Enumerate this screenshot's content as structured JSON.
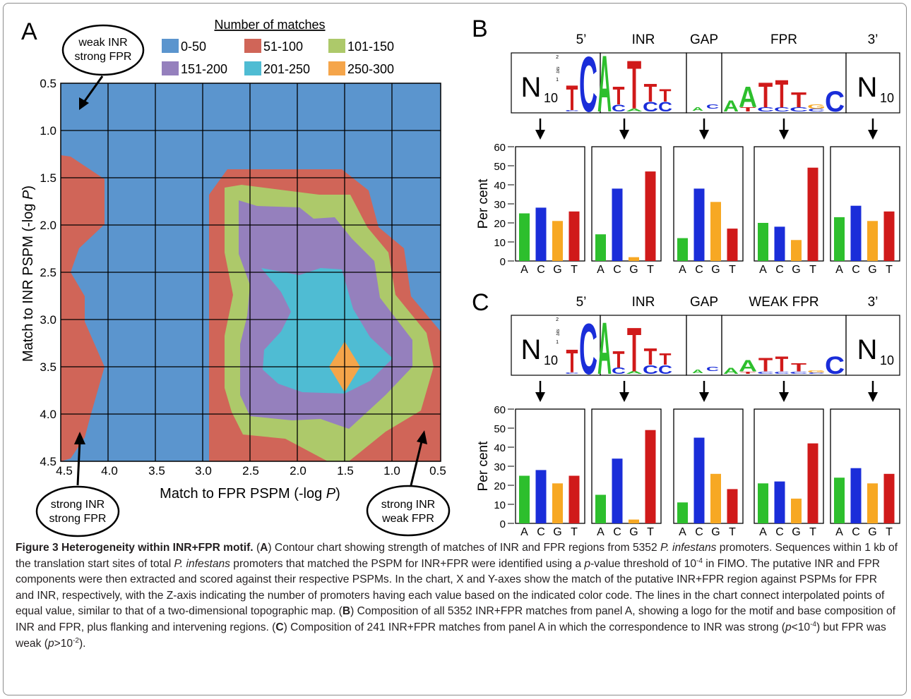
{
  "colors": {
    "c0_50": "#5b95ce",
    "c51_100": "#d06558",
    "c101_150": "#adc96a",
    "c151_200": "#9580bd",
    "c201_250": "#4fbcd3",
    "c250_300": "#f5a54a",
    "A": "#2dbf2d",
    "C": "#1a2dd9",
    "G": "#f7a823",
    "T": "#d01a1a"
  },
  "panelA": {
    "letter": "A",
    "legend_title": "Number of matches",
    "legend": [
      {
        "label": "0-50",
        "color": "#5b95ce"
      },
      {
        "label": "51-100",
        "color": "#d06558"
      },
      {
        "label": "101-150",
        "color": "#adc96a"
      },
      {
        "label": "151-200",
        "color": "#9580bd"
      },
      {
        "label": "201-250",
        "color": "#4fbcd3"
      },
      {
        "label": "250-300",
        "color": "#f5a54a"
      }
    ],
    "xlabel_pre": "Match to FPR PSPM (-log ",
    "xlabel_var": "P",
    "ylabel_pre": "Match to INR  PSPM (-log ",
    "ylabel_var": "P",
    "close_paren": ")",
    "xticks": [
      "4.5",
      "4.0",
      "3.5",
      "3.0",
      "2.5",
      "2.0",
      "1.5",
      "1.0",
      "0.5"
    ],
    "yticks": [
      "0.5",
      "1.0",
      "1.5",
      "2.0",
      "2.5",
      "3.0",
      "3.5",
      "4.0",
      "4.5"
    ],
    "callout_top_l1": "weak INR",
    "callout_top_l2": "strong FPR",
    "callout_bl_l1": "strong INR",
    "callout_bl_l2": "strong FPR",
    "callout_br_l1": "strong INR",
    "callout_br_l2": "weak FPR"
  },
  "panelB": {
    "letter": "B",
    "regions": [
      "5’",
      "INR",
      "GAP",
      "FPR",
      "3’"
    ],
    "n_label": "N",
    "n_sub": "10",
    "bits_label": "bits",
    "bits_ticks": [
      "2",
      "1"
    ],
    "ylabel": "Per cent",
    "yticks": [
      "60",
      "50",
      "40",
      "30",
      "20",
      "10",
      "0"
    ],
    "bases": [
      "A",
      "C",
      "G",
      "T"
    ],
    "bars": [
      [
        25,
        28,
        21,
        26
      ],
      [
        14,
        38,
        2,
        47
      ],
      [
        12,
        38,
        31,
        17
      ],
      [
        20,
        18,
        11,
        49
      ],
      [
        23,
        29,
        21,
        26
      ]
    ]
  },
  "panelC": {
    "letter": "C",
    "regions": [
      "5’",
      "INR",
      "GAP",
      "WEAK FPR",
      "3’"
    ],
    "n_label": "N",
    "n_sub": "10",
    "bits_label": "bits",
    "bits_ticks": [
      "2",
      "1"
    ],
    "ylabel": "Per cent",
    "yticks": [
      "60",
      "50",
      "40",
      "30",
      "20",
      "10",
      "0"
    ],
    "bases": [
      "A",
      "C",
      "G",
      "T"
    ],
    "bars": [
      [
        25,
        28,
        21,
        25
      ],
      [
        15,
        34,
        2,
        49
      ],
      [
        11,
        45,
        26,
        18
      ],
      [
        21,
        22,
        13,
        42
      ],
      [
        24,
        29,
        21,
        26
      ]
    ]
  },
  "caption": {
    "title": "Figure 3 Heterogeneity within INR+FPR motif.",
    "s01": " (",
    "s02": "A",
    "s03": ") Contour chart showing strength of matches of INR and FPR regions from 5352 ",
    "s04": "P. infestans",
    "s05": " promoters. Sequences within 1 kb of the translation start sites of total ",
    "s06": "P. infestans",
    "s07": " promoters that matched the PSPM for INR+FPR were identified using a ",
    "s08": "p",
    "s09": "-value threshold of 10",
    "s10": "-4",
    "s11": " in FIMO. The putative INR and FPR components were then extracted and scored against their respective PSPMs. In the chart, X and Y-axes show the match of the putative INR+FPR region against PSPMs for FPR and INR, respectively, with the Z-axis indicating the number of promoters having each value based on the indicated color code. The lines in the chart connect interpolated points of equal value, similar to that of a two-dimensional topographic map. (",
    "s12": "B",
    "s13": ") Composition of all 5352 INR+FPR matches from panel A, showing a logo for the motif and base composition of INR and FPR, plus flanking and intervening regions. (",
    "s14": "C",
    "s15": ") Composition of 241 INR+FPR matches from panel A in which the correspondence to INR was strong (",
    "s16": "p",
    "s17": "<10",
    "s18": "-4",
    "s19": ") but FPR was weak (",
    "s20": "p",
    "s21": ">10",
    "s22": "-2",
    "s23": ")."
  }
}
